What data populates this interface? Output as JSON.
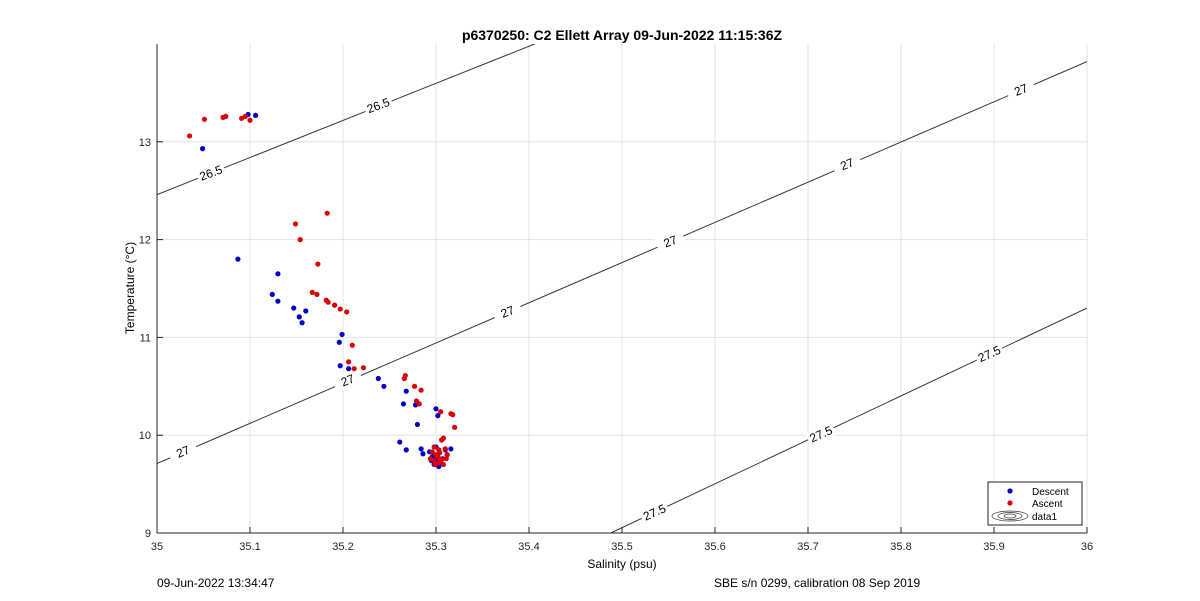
{
  "chart_data": {
    "type": "scatter",
    "title": "p6370250: C2 Ellett Array 09-Jun-2022 11:15:36Z",
    "xlabel": "Salinity (psu)",
    "ylabel": "Temperature (°C)",
    "xlim": [
      35,
      36
    ],
    "ylim": [
      9,
      14
    ],
    "xticks": [
      35,
      35.1,
      35.2,
      35.3,
      35.4,
      35.5,
      35.6,
      35.7,
      35.8,
      35.9,
      36
    ],
    "xtick_labels": [
      "35",
      "35.1",
      "35.2",
      "35.3",
      "35.4",
      "35.5",
      "35.6",
      "35.7",
      "35.8",
      "35.9",
      "36"
    ],
    "yticks": [
      9,
      10,
      11,
      12,
      13
    ],
    "ytick_labels": [
      "9",
      "10",
      "11",
      "12",
      "13"
    ],
    "grid": true,
    "legend_position": "bottom-right",
    "series": [
      {
        "name": "Descent",
        "color": "#0000cc",
        "points": [
          [
            35.049,
            12.93
          ],
          [
            35.098,
            13.28
          ],
          [
            35.106,
            13.27
          ],
          [
            35.087,
            11.8
          ],
          [
            35.13,
            11.65
          ],
          [
            35.124,
            11.44
          ],
          [
            35.13,
            11.37
          ],
          [
            35.147,
            11.3
          ],
          [
            35.16,
            11.27
          ],
          [
            35.153,
            11.21
          ],
          [
            35.156,
            11.15
          ],
          [
            35.199,
            11.03
          ],
          [
            35.196,
            10.95
          ],
          [
            35.197,
            10.71
          ],
          [
            35.206,
            10.68
          ],
          [
            35.238,
            10.58
          ],
          [
            35.244,
            10.5
          ],
          [
            35.268,
            10.45
          ],
          [
            35.265,
            10.32
          ],
          [
            35.278,
            10.31
          ],
          [
            35.3,
            10.27
          ],
          [
            35.302,
            10.2
          ],
          [
            35.28,
            10.11
          ],
          [
            35.261,
            9.93
          ],
          [
            35.268,
            9.85
          ],
          [
            35.284,
            9.86
          ],
          [
            35.286,
            9.81
          ],
          [
            35.293,
            9.83
          ],
          [
            35.3,
            9.88
          ],
          [
            35.31,
            9.85
          ],
          [
            35.316,
            9.86
          ],
          [
            35.295,
            9.74
          ],
          [
            35.298,
            9.7
          ],
          [
            35.303,
            9.68
          ],
          [
            35.305,
            9.72
          ],
          [
            35.307,
            9.76
          ],
          [
            35.312,
            9.8
          ],
          [
            35.3,
            9.76
          ],
          [
            35.296,
            9.78
          ]
        ]
      },
      {
        "name": "Ascent",
        "color": "#dd0000",
        "points": [
          [
            35.035,
            13.06
          ],
          [
            35.051,
            13.23
          ],
          [
            35.071,
            13.25
          ],
          [
            35.074,
            13.26
          ],
          [
            35.091,
            13.24
          ],
          [
            35.095,
            13.26
          ],
          [
            35.1,
            13.22
          ],
          [
            35.149,
            12.16
          ],
          [
            35.183,
            12.27
          ],
          [
            35.154,
            12.0
          ],
          [
            35.173,
            11.75
          ],
          [
            35.167,
            11.46
          ],
          [
            35.172,
            11.44
          ],
          [
            35.182,
            11.38
          ],
          [
            35.184,
            11.36
          ],
          [
            35.191,
            11.33
          ],
          [
            35.197,
            11.29
          ],
          [
            35.204,
            11.26
          ],
          [
            35.21,
            10.92
          ],
          [
            35.206,
            10.75
          ],
          [
            35.212,
            10.68
          ],
          [
            35.222,
            10.69
          ],
          [
            35.267,
            10.61
          ],
          [
            35.266,
            10.58
          ],
          [
            35.277,
            10.5
          ],
          [
            35.284,
            10.46
          ],
          [
            35.279,
            10.35
          ],
          [
            35.282,
            10.32
          ],
          [
            35.305,
            10.24
          ],
          [
            35.318,
            10.21
          ],
          [
            35.316,
            10.22
          ],
          [
            35.32,
            10.08
          ],
          [
            35.308,
            9.97
          ],
          [
            35.306,
            9.95
          ],
          [
            35.298,
            9.88
          ],
          [
            35.303,
            9.85
          ],
          [
            35.31,
            9.86
          ],
          [
            35.296,
            9.83
          ],
          [
            35.3,
            9.8
          ],
          [
            35.302,
            9.78
          ],
          [
            35.306,
            9.75
          ],
          [
            35.298,
            9.74
          ],
          [
            35.303,
            9.72
          ],
          [
            35.299,
            9.7
          ],
          [
            35.308,
            9.7
          ],
          [
            35.311,
            9.76
          ],
          [
            35.294,
            9.76
          ],
          [
            35.304,
            9.82
          ],
          [
            35.312,
            9.8
          ]
        ]
      }
    ],
    "contours": [
      {
        "label": "26.5",
        "line": [
          [
            35.0,
            12.46
          ],
          [
            35.406,
            14.0
          ]
        ],
        "labels_at": [
          [
            35.058,
            12.68,
            20
          ],
          [
            35.238,
            13.37,
            20
          ]
        ]
      },
      {
        "label": "27",
        "line": [
          [
            35.0,
            9.71
          ],
          [
            36.0,
            13.82
          ]
        ],
        "labels_at": [
          [
            35.028,
            9.83,
            22
          ],
          [
            35.205,
            10.56,
            22
          ],
          [
            35.377,
            11.26,
            22
          ],
          [
            35.552,
            11.98,
            22
          ],
          [
            35.742,
            12.77,
            22
          ],
          [
            35.929,
            13.53,
            22
          ]
        ]
      },
      {
        "label": "27.5",
        "line": [
          [
            35.488,
            9.0
          ],
          [
            36.0,
            11.3
          ]
        ],
        "labels_at": [
          [
            35.535,
            9.21,
            24
          ],
          [
            35.714,
            10.01,
            24
          ],
          [
            35.895,
            10.83,
            24
          ]
        ]
      }
    ],
    "legend_entries": [
      "Descent",
      "Ascent",
      "data1"
    ],
    "footer_left": "09-Jun-2022 13:34:47",
    "footer_right": "SBE s/n 0299, calibration 08 Sep 2019"
  }
}
